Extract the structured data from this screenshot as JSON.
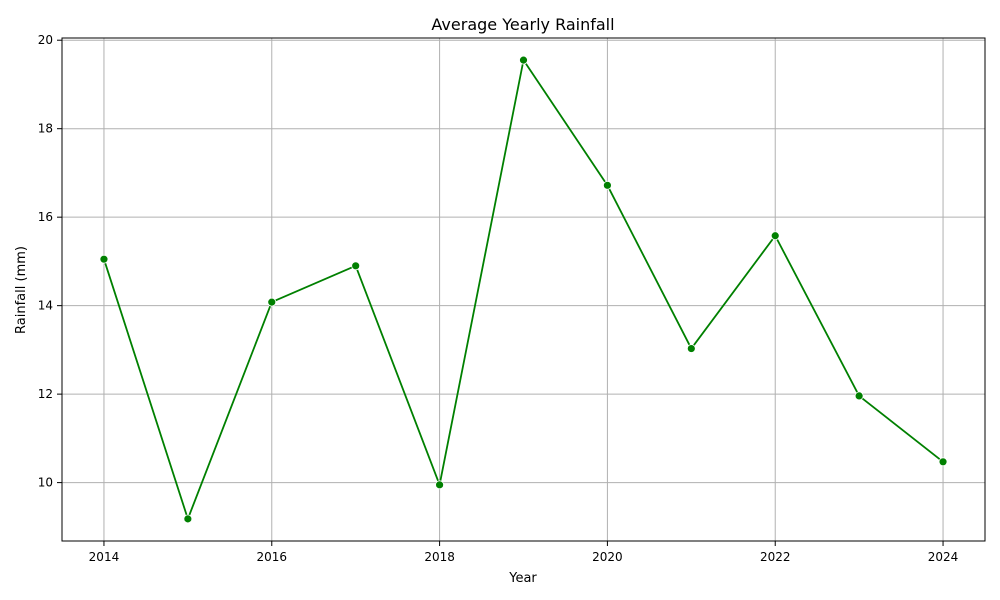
{
  "chart_data": {
    "type": "line",
    "title": "Average Yearly Rainfall",
    "xlabel": "Year",
    "ylabel": "Rainfall (mm)",
    "x": [
      2014,
      2015,
      2016,
      2017,
      2018,
      2019,
      2020,
      2021,
      2022,
      2023,
      2024
    ],
    "series": [
      {
        "values": [
          15.05,
          9.18,
          14.08,
          14.9,
          9.95,
          19.55,
          16.72,
          13.03,
          15.58,
          11.96,
          10.47
        ]
      }
    ],
    "xticks": [
      "2014",
      "2016",
      "2018",
      "2020",
      "2022",
      "2024"
    ],
    "yticks": [
      "10",
      "12",
      "14",
      "16",
      "18",
      "20"
    ],
    "xlim": [
      2013.5,
      2024.5
    ],
    "ylim": [
      8.68,
      20.05
    ],
    "grid": true,
    "line_color": "#008000",
    "marker": "circle"
  }
}
